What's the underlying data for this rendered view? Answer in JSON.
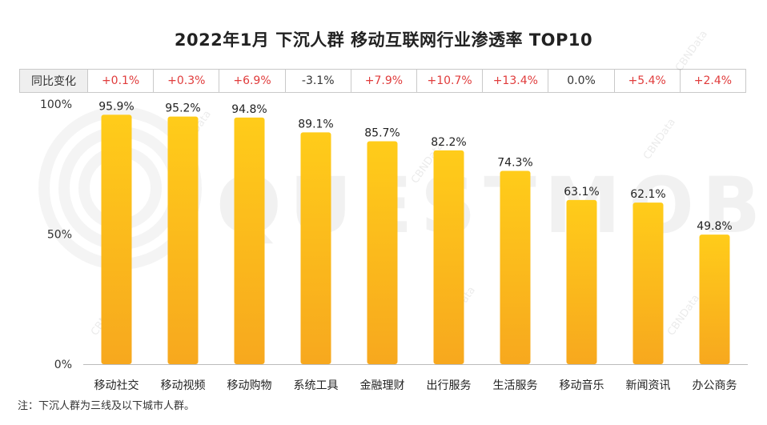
{
  "chart_data": {
    "type": "bar",
    "title": "2022年1月 下沉人群 移动互联网行业渗透率 TOP10",
    "categories": [
      "移动社交",
      "移动视频",
      "移动购物",
      "系统工具",
      "金融理财",
      "出行服务",
      "生活服务",
      "移动音乐",
      "新闻资讯",
      "办公商务"
    ],
    "values": [
      95.9,
      95.2,
      94.8,
      89.1,
      85.7,
      82.2,
      74.3,
      63.1,
      62.1,
      49.8
    ],
    "value_labels": [
      "95.9%",
      "95.2%",
      "94.8%",
      "89.1%",
      "85.7%",
      "82.2%",
      "74.3%",
      "63.1%",
      "62.1%",
      "49.8%"
    ],
    "yoy_label": "同比变化",
    "yoy_changes": [
      "+0.1%",
      "+0.3%",
      "+6.9%",
      "-3.1%",
      "+7.9%",
      "+10.7%",
      "+13.4%",
      "0.0%",
      "+5.4%",
      "+2.4%"
    ],
    "y_ticks": [
      "100%",
      "50%",
      "0%"
    ],
    "y_tick_values": [
      100,
      50,
      0
    ],
    "ylim": [
      0,
      100
    ],
    "xlabel": "",
    "ylabel": ""
  },
  "note": "注：下沉人群为三线及以下城市人群。",
  "watermarks": [
    "QUESTMOBILE",
    "CBNData"
  ],
  "colors": {
    "bar_top": "#FFCC1A",
    "bar_bottom": "#F7A81E",
    "positive": "#E03C3C",
    "neutral": "#333333"
  }
}
